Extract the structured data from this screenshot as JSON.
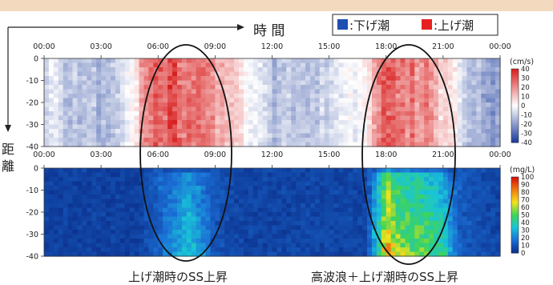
{
  "axes": {
    "time_label": "時 間",
    "distance_label": "距 離"
  },
  "legend": {
    "items": [
      {
        "label": ":下げ潮",
        "color": "#1f4fb3"
      },
      {
        "label": ":上げ潮",
        "color": "#e62020"
      }
    ]
  },
  "annotations": {
    "left": "上げ潮時のSS上昇",
    "right": "高波浪＋上げ潮時のSS上昇"
  },
  "chart_data": [
    {
      "type": "heatmap",
      "name_key": "velocity",
      "x_ticks": [
        "00:00",
        "03:00",
        "06:00",
        "09:00",
        "12:00",
        "15:00",
        "18:00",
        "21:00",
        "00:00"
      ],
      "y_ticks": [
        "0",
        "-10",
        "-20",
        "-30",
        "-40"
      ],
      "xlim": [
        "00:00",
        "24:00"
      ],
      "ylim": [
        -40,
        0
      ],
      "colorbar": {
        "unit": "(cm/s)",
        "ticks": [
          "40",
          "30",
          "20",
          "10",
          "0",
          "-10",
          "-20",
          "-30",
          "-40"
        ],
        "range": [
          -40,
          40
        ],
        "colors": [
          "#1a3a9a",
          "#ffffff",
          "#d91c1c"
        ]
      },
      "time_profile_hours": [
        0,
        1,
        2,
        3,
        4,
        4.7,
        5.2,
        6,
        7,
        8,
        9,
        10,
        11,
        12,
        13,
        14,
        15,
        16,
        17,
        17.5,
        18,
        19,
        20,
        21,
        22,
        23,
        24
      ],
      "time_profile_values": [
        -6,
        -10,
        -12,
        -14,
        -8,
        2,
        22,
        30,
        32,
        28,
        18,
        6,
        -4,
        -12,
        -15,
        -14,
        -12,
        -6,
        6,
        24,
        30,
        28,
        22,
        10,
        -4,
        -18,
        -20
      ]
    },
    {
      "type": "heatmap",
      "name_key": "ss",
      "x_ticks": [
        "00:00",
        "03:00",
        "06:00",
        "09:00",
        "12:00",
        "15:00",
        "18:00",
        "21:00",
        "00:00"
      ],
      "y_ticks": [
        "0",
        "-10",
        "-20",
        "-30",
        "-40"
      ],
      "xlim": [
        "00:00",
        "24:00"
      ],
      "ylim": [
        -40,
        0
      ],
      "colorbar": {
        "unit": "(mg/L)",
        "ticks": [
          "100",
          "90",
          "80",
          "70",
          "60",
          "50",
          "40",
          "30",
          "20",
          "10",
          "0"
        ],
        "range": [
          0,
          100
        ],
        "colors": [
          "#0b2e8a",
          "#1b6fd6",
          "#19c4d8",
          "#3ed45a",
          "#f5e21a",
          "#f07a10",
          "#d40a0a"
        ]
      },
      "time_profile_hours": [
        0,
        5,
        5.8,
        6.5,
        7,
        7.5,
        8,
        8.5,
        9,
        10,
        17,
        17.4,
        17.8,
        18,
        18.3,
        19,
        20,
        21,
        21.5,
        22,
        23,
        24
      ],
      "time_profile_values": [
        5,
        5,
        12,
        18,
        22,
        30,
        26,
        18,
        10,
        6,
        6,
        28,
        45,
        70,
        55,
        48,
        44,
        36,
        18,
        12,
        8,
        6
      ]
    }
  ]
}
